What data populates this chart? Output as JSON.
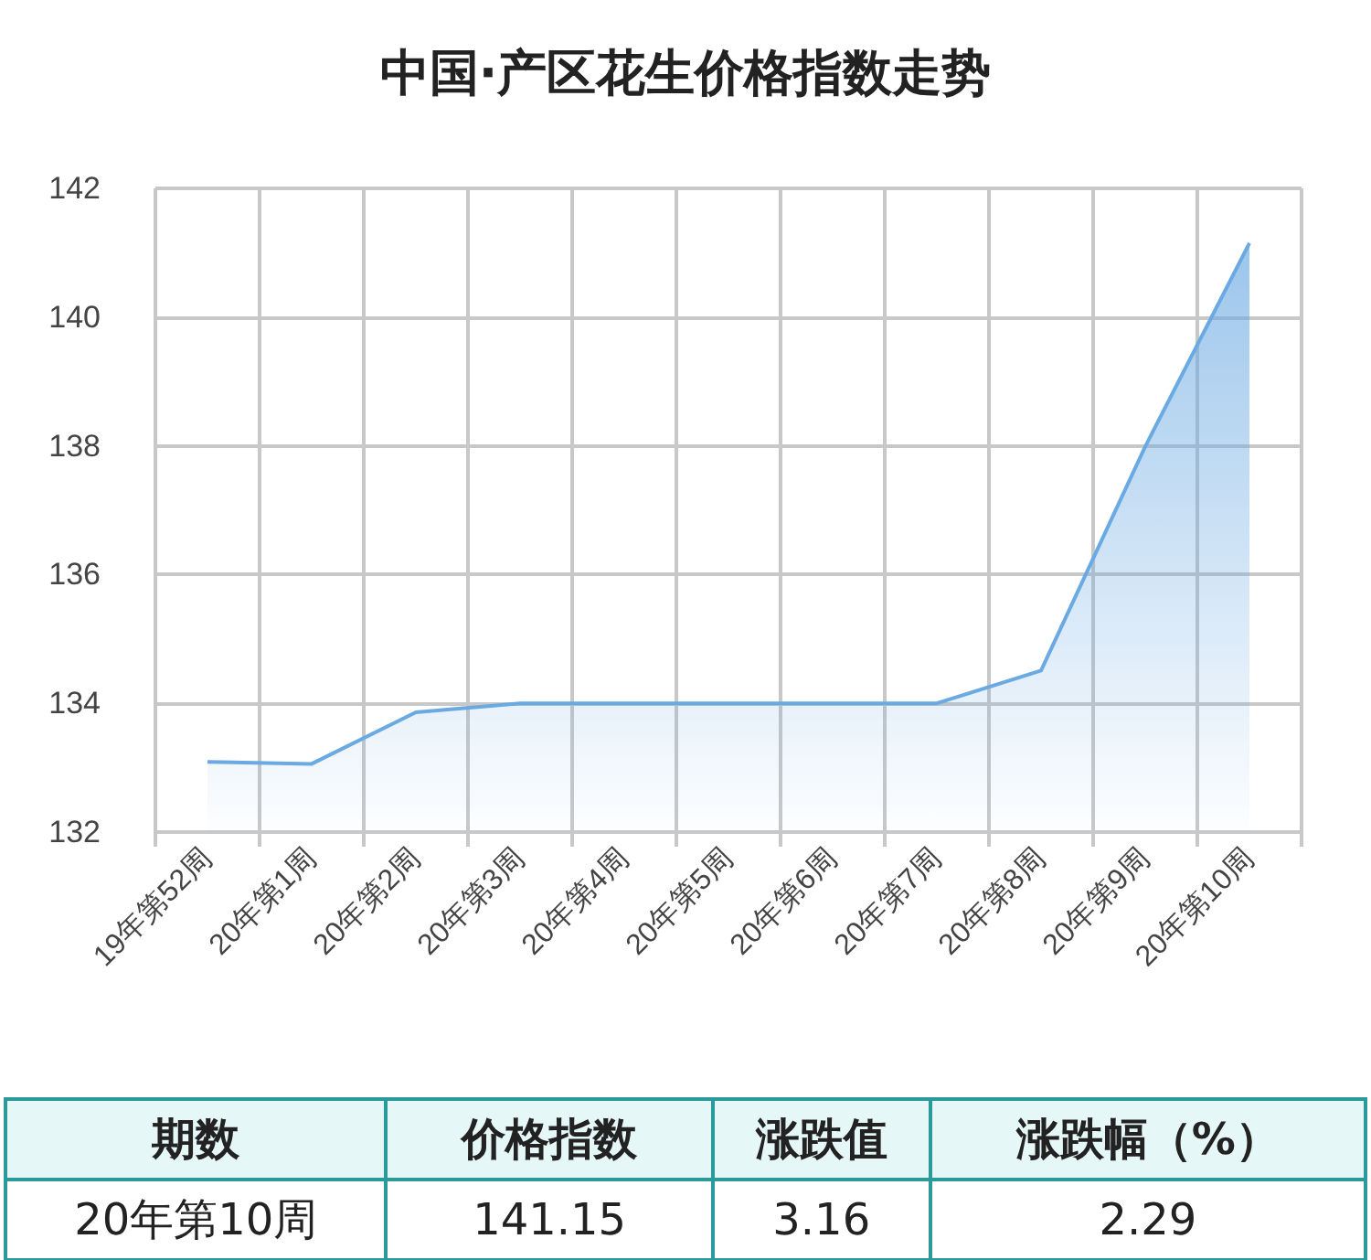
{
  "chart_data": {
    "type": "area",
    "title": "中国·产区花生价格指数走势",
    "categories": [
      "19年第52周",
      "20年第1周",
      "20年第2周",
      "20年第3周",
      "20年第4周",
      "20年第5周",
      "20年第6周",
      "20年第7周",
      "20年第8周",
      "20年第9周",
      "20年第10周"
    ],
    "series": [
      {
        "color": "#6aa9e2",
        "values": [
          133.09,
          133.06,
          133.86,
          134.0,
          134.0,
          134.0,
          134.0,
          134.0,
          134.51,
          137.99,
          141.15
        ]
      }
    ],
    "ylim": [
      132,
      142
    ],
    "yticks": [
      132,
      134,
      136,
      138,
      140,
      142
    ],
    "grid": true,
    "marker": "none",
    "annotations": [
      "期数",
      "价格指数",
      "涨跌值",
      "涨跌幅（%）",
      "20年第10周",
      "141.15",
      "3.16",
      "2.29"
    ]
  }
}
